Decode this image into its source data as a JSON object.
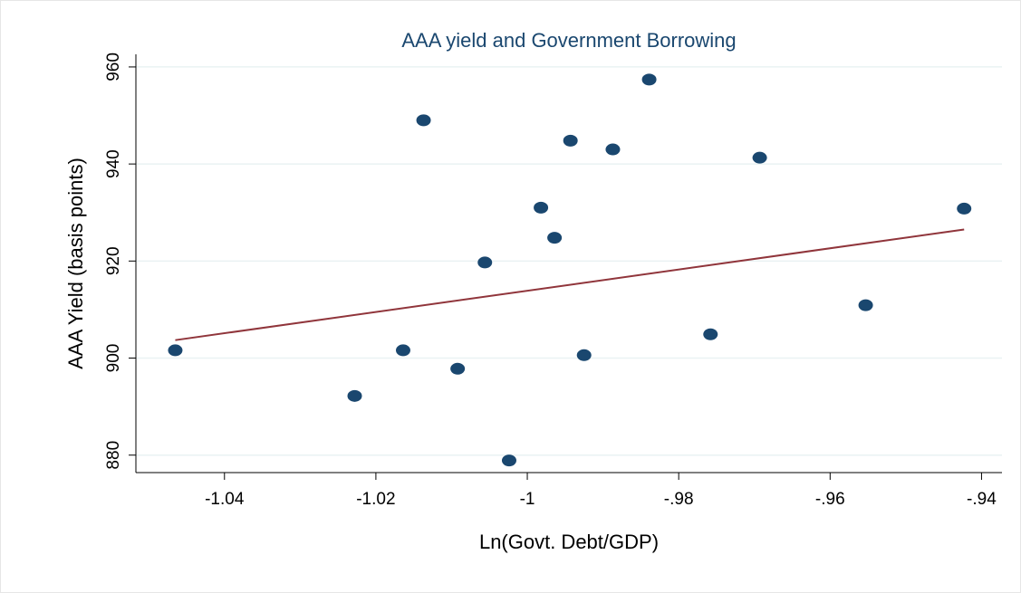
{
  "chart_data": {
    "type": "scatter",
    "title": "AAA yield and Government Borrowing",
    "x_label": "Ln(Govt. Debt/GDP)",
    "y_label": "AAA Yield  (basis points)",
    "x": [
      -1.0465,
      -1.0228,
      -1.0164,
      -1.0137,
      -1.0092,
      -1.0056,
      -1.0024,
      -0.9982,
      -0.9964,
      -0.9943,
      -0.9925,
      -0.9887,
      -0.9839,
      -0.9758,
      -0.9693,
      -0.9553,
      -0.9423
    ],
    "values": [
      901.6,
      892.2,
      901.6,
      949.0,
      897.8,
      919.7,
      878.9,
      931.0,
      924.8,
      944.8,
      900.6,
      943.0,
      957.4,
      904.9,
      941.3,
      910.9,
      930.8
    ],
    "color": "#1a476f",
    "fit": {
      "x": [
        -1.0465,
        -0.9423
      ],
      "values": [
        903.7,
        926.5
      ],
      "color": "#90353b"
    },
    "xlim": [
      -1.0517,
      -0.9373
    ],
    "ylim": [
      876.4,
      962.6
    ],
    "xticks": [
      {
        "value": -1.04,
        "label": "-1.04"
      },
      {
        "value": -1.02,
        "label": "-1.02"
      },
      -1,
      {
        "value": -0.98,
        "label": "-.98"
      },
      {
        "value": -0.96,
        "label": "-.96"
      },
      {
        "value": -0.94,
        "label": "-.94"
      }
    ],
    "yticks": [
      880,
      900,
      920,
      940,
      960
    ],
    "grid": true
  }
}
